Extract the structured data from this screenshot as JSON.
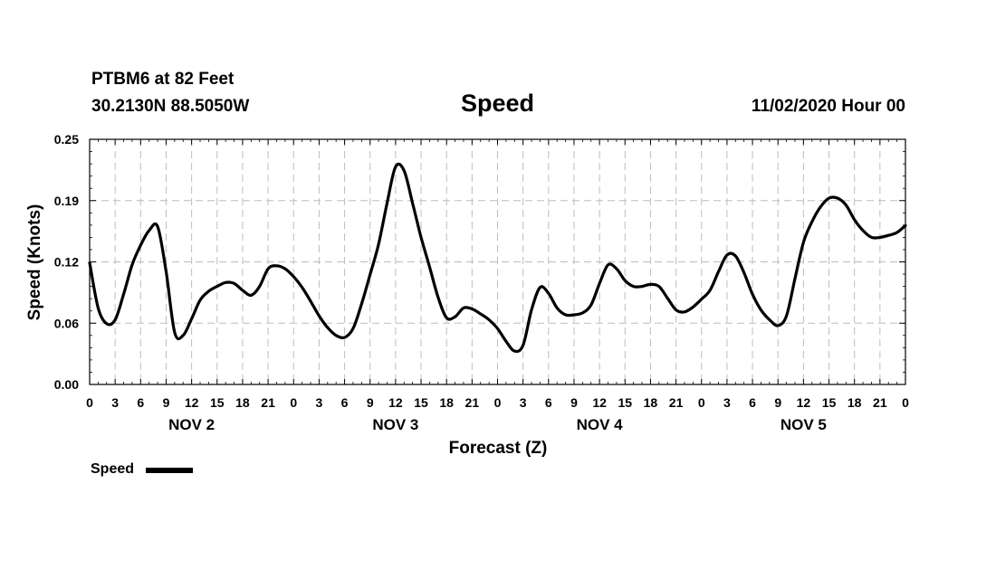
{
  "header": {
    "station": "PTBM6 at 82 Feet",
    "coords": "30.2130N 88.5050W",
    "title": "Speed",
    "datetime": "11/02/2020 Hour 00"
  },
  "legend": {
    "label": "Speed"
  },
  "chart_data": {
    "type": "line",
    "title": "Speed",
    "xlabel": "Forecast (Z)",
    "ylabel": "Speed (Knots)",
    "ylim": [
      0.0,
      0.25
    ],
    "y_ticks": [
      "0.00",
      "0.06",
      "0.12",
      "0.19",
      "0.25"
    ],
    "xlim": [
      0,
      96
    ],
    "x_tick_labels": [
      "0",
      "3",
      "6",
      "9",
      "12",
      "15",
      "18",
      "21",
      "0",
      "3",
      "6",
      "9",
      "12",
      "15",
      "18",
      "21",
      "0",
      "3",
      "6",
      "9",
      "12",
      "15",
      "18",
      "21",
      "0",
      "3",
      "6",
      "9",
      "12",
      "15",
      "18",
      "21",
      "0"
    ],
    "day_labels": [
      "NOV 2",
      "NOV 3",
      "NOV 4",
      "NOV 5"
    ],
    "grid": true,
    "legend_position": "bottom-left",
    "line_color": "#000000",
    "series": [
      {
        "name": "Speed",
        "x": [
          0,
          1,
          2,
          3,
          4,
          5,
          6,
          7,
          8,
          9,
          10,
          11,
          12,
          13,
          14,
          15,
          16,
          17,
          18,
          19,
          20,
          21,
          22,
          23,
          24,
          25,
          26,
          27,
          28,
          29,
          30,
          31,
          32,
          33,
          34,
          35,
          36,
          37,
          38,
          39,
          40,
          41,
          42,
          43,
          44,
          45,
          46,
          47,
          48,
          49,
          50,
          51,
          52,
          53,
          54,
          55,
          56,
          57,
          58,
          59,
          60,
          61,
          62,
          63,
          64,
          65,
          66,
          67,
          68,
          69,
          70,
          71,
          72,
          73,
          74,
          75,
          76,
          77,
          78,
          79,
          80,
          81,
          82,
          83,
          84,
          85,
          86,
          87,
          88,
          89,
          90,
          91,
          92,
          93,
          94,
          95,
          96
        ],
        "values": [
          0.124,
          0.078,
          0.062,
          0.066,
          0.092,
          0.122,
          0.142,
          0.157,
          0.161,
          0.115,
          0.053,
          0.05,
          0.067,
          0.086,
          0.095,
          0.1,
          0.104,
          0.103,
          0.096,
          0.091,
          0.1,
          0.118,
          0.121,
          0.118,
          0.11,
          0.099,
          0.085,
          0.07,
          0.058,
          0.05,
          0.048,
          0.057,
          0.082,
          0.112,
          0.143,
          0.185,
          0.222,
          0.218,
          0.185,
          0.15,
          0.12,
          0.089,
          0.068,
          0.069,
          0.078,
          0.077,
          0.072,
          0.066,
          0.057,
          0.044,
          0.034,
          0.04,
          0.076,
          0.099,
          0.093,
          0.078,
          0.071,
          0.071,
          0.073,
          0.081,
          0.103,
          0.122,
          0.118,
          0.106,
          0.1,
          0.1,
          0.102,
          0.1,
          0.088,
          0.076,
          0.074,
          0.079,
          0.087,
          0.096,
          0.115,
          0.132,
          0.131,
          0.114,
          0.092,
          0.076,
          0.066,
          0.06,
          0.07,
          0.108,
          0.145,
          0.166,
          0.181,
          0.19,
          0.19,
          0.183,
          0.168,
          0.157,
          0.15,
          0.15,
          0.152,
          0.155,
          0.162
        ]
      }
    ]
  }
}
